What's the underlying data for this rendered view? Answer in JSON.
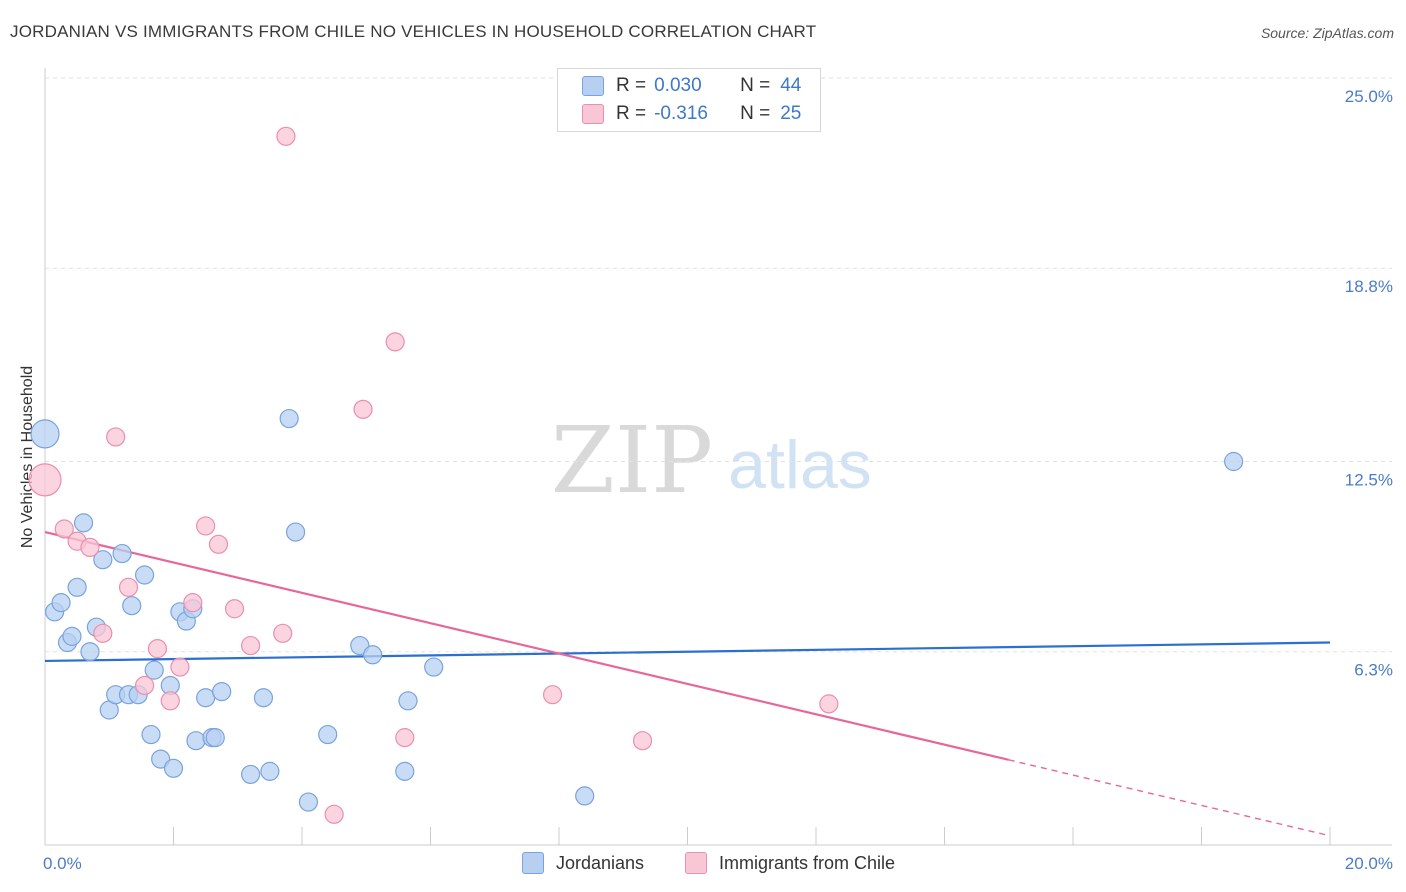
{
  "title": "JORDANIAN VS IMMIGRANTS FROM CHILE NO VEHICLES IN HOUSEHOLD CORRELATION CHART",
  "source": "Source: ZipAtlas.com",
  "watermark": {
    "zip": "ZIP",
    "atlas": "atlas"
  },
  "legend": {
    "rows": [
      {
        "r_label": "R =",
        "r_value": "0.030",
        "n_label": "N =",
        "n_value": "44"
      },
      {
        "r_label": "R =",
        "r_value": "-0.316",
        "n_label": "N =",
        "n_value": "25"
      }
    ]
  },
  "bottom_legend": {
    "jordanians": "Jordanians",
    "chile": "Immigrants from Chile"
  },
  "colors": {
    "blue_fill": "#b7d0f2",
    "blue_stroke": "#7aa3dc",
    "blue_line": "#2b6fd0",
    "pink_fill": "#f9c6d6",
    "pink_stroke": "#ea8fae",
    "pink_line": "#e8679a",
    "grid": "#e2e2e2",
    "axis_text": "#4a7cc9"
  },
  "chart_data": {
    "type": "scatter",
    "title": "JORDANIAN VS IMMIGRANTS FROM CHILE NO VEHICLES IN HOUSEHOLD CORRELATION CHART",
    "xlabel": "",
    "ylabel": "No Vehicles in Household",
    "xlim": [
      0,
      20
    ],
    "ylim": [
      0,
      25
    ],
    "x_tick_labels": [
      "0.0%",
      "20.0%"
    ],
    "y_ticks": [
      6.3,
      12.5,
      18.8,
      25.0
    ],
    "y_tick_labels": [
      "6.3%",
      "12.5%",
      "18.8%",
      "25.0%"
    ],
    "series": [
      {
        "name": "Jordanians",
        "color": "#b7d0f2",
        "points": [
          [
            0.0,
            13.4,
            14
          ],
          [
            0.15,
            7.6,
            9
          ],
          [
            0.25,
            7.9,
            9
          ],
          [
            0.35,
            6.6,
            9
          ],
          [
            0.42,
            6.8,
            9
          ],
          [
            0.6,
            10.5,
            9
          ],
          [
            0.5,
            8.4,
            9
          ],
          [
            0.7,
            6.3,
            9
          ],
          [
            0.8,
            7.1,
            9
          ],
          [
            0.9,
            9.3,
            9
          ],
          [
            1.0,
            4.4,
            9
          ],
          [
            1.1,
            4.9,
            9
          ],
          [
            1.2,
            9.5,
            9
          ],
          [
            1.3,
            4.9,
            9
          ],
          [
            1.35,
            7.8,
            9
          ],
          [
            1.45,
            4.9,
            9
          ],
          [
            1.55,
            8.8,
            9
          ],
          [
            1.65,
            3.6,
            9
          ],
          [
            1.7,
            5.7,
            9
          ],
          [
            1.8,
            2.8,
            9
          ],
          [
            1.95,
            5.2,
            9
          ],
          [
            2.0,
            2.5,
            9
          ],
          [
            2.1,
            7.6,
            9
          ],
          [
            2.2,
            7.3,
            9
          ],
          [
            2.3,
            7.7,
            9
          ],
          [
            2.35,
            3.4,
            9
          ],
          [
            2.5,
            4.8,
            9
          ],
          [
            2.6,
            3.5,
            9
          ],
          [
            2.65,
            3.5,
            9
          ],
          [
            2.75,
            5.0,
            9
          ],
          [
            3.2,
            2.3,
            9
          ],
          [
            3.4,
            4.8,
            9
          ],
          [
            3.5,
            2.4,
            9
          ],
          [
            3.8,
            13.9,
            9
          ],
          [
            3.9,
            10.2,
            9
          ],
          [
            4.1,
            1.4,
            9
          ],
          [
            4.4,
            3.6,
            9
          ],
          [
            4.9,
            6.5,
            9
          ],
          [
            5.1,
            6.2,
            9
          ],
          [
            5.6,
            2.4,
            9
          ],
          [
            5.65,
            4.7,
            9
          ],
          [
            6.05,
            5.8,
            9
          ],
          [
            8.4,
            1.6,
            9
          ],
          [
            18.5,
            12.5,
            9
          ]
        ]
      },
      {
        "name": "Immigrants from Chile",
        "color": "#f9c6d6",
        "points": [
          [
            0.0,
            11.9,
            16
          ],
          [
            0.3,
            10.3,
            9
          ],
          [
            0.5,
            9.9,
            9
          ],
          [
            0.7,
            9.7,
            9
          ],
          [
            0.9,
            6.9,
            9
          ],
          [
            1.1,
            13.3,
            9
          ],
          [
            1.3,
            8.4,
            9
          ],
          [
            1.55,
            5.2,
            9
          ],
          [
            1.75,
            6.4,
            9
          ],
          [
            1.95,
            4.7,
            9
          ],
          [
            2.1,
            5.8,
            9
          ],
          [
            2.3,
            7.9,
            9
          ],
          [
            2.5,
            10.4,
            9
          ],
          [
            2.7,
            9.8,
            9
          ],
          [
            2.95,
            7.7,
            9
          ],
          [
            3.2,
            6.5,
            9
          ],
          [
            3.7,
            6.9,
            9
          ],
          [
            3.75,
            23.1,
            9
          ],
          [
            4.5,
            1.0,
            9
          ],
          [
            4.95,
            14.2,
            9
          ],
          [
            5.45,
            16.4,
            9
          ],
          [
            5.6,
            3.5,
            9
          ],
          [
            7.9,
            4.9,
            9
          ],
          [
            9.3,
            3.4,
            9
          ],
          [
            12.2,
            4.6,
            9
          ]
        ]
      }
    ],
    "trendlines": [
      {
        "series": "Jordanians",
        "x1": 0.0,
        "y1": 6.0,
        "x2": 20.0,
        "y2": 6.6,
        "dashed_from": null
      },
      {
        "series": "Immigrants from Chile",
        "x1": 0.0,
        "y1": 10.2,
        "x2": 20.0,
        "y2": 0.3,
        "dashed_from": 15.0
      }
    ]
  }
}
